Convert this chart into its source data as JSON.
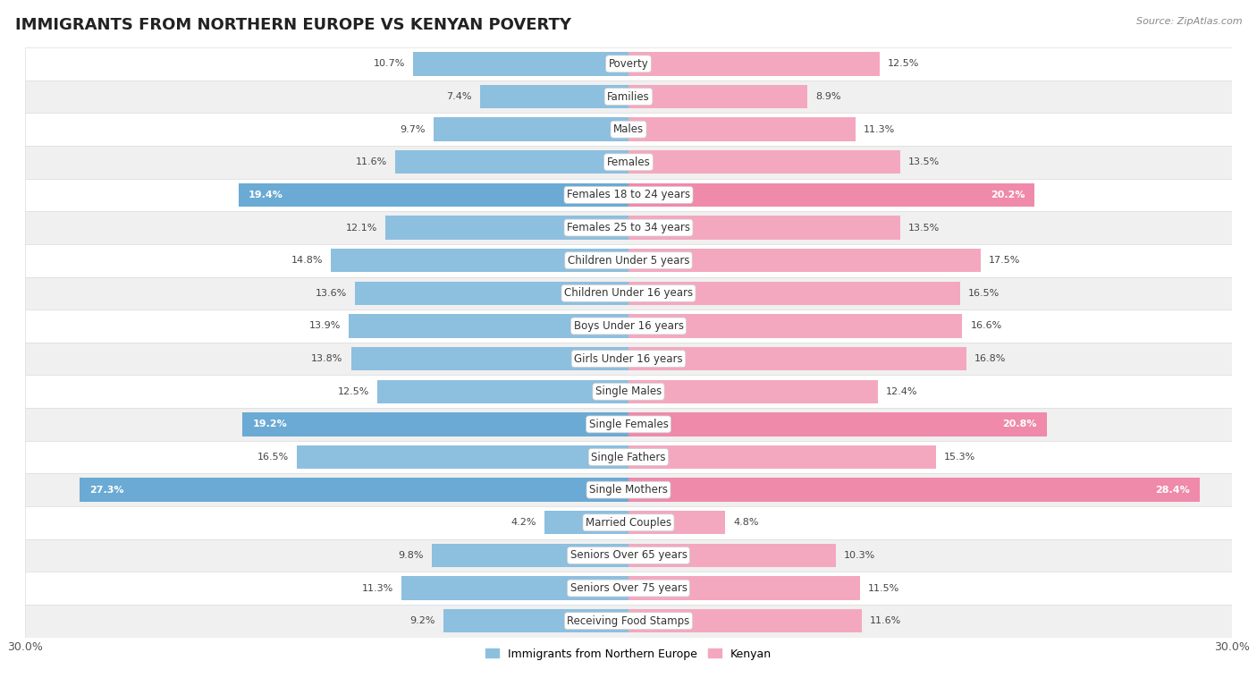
{
  "title": "IMMIGRANTS FROM NORTHERN EUROPE VS KENYAN POVERTY",
  "source": "Source: ZipAtlas.com",
  "categories": [
    "Poverty",
    "Families",
    "Males",
    "Females",
    "Females 18 to 24 years",
    "Females 25 to 34 years",
    "Children Under 5 years",
    "Children Under 16 years",
    "Boys Under 16 years",
    "Girls Under 16 years",
    "Single Males",
    "Single Females",
    "Single Fathers",
    "Single Mothers",
    "Married Couples",
    "Seniors Over 65 years",
    "Seniors Over 75 years",
    "Receiving Food Stamps"
  ],
  "left_values": [
    10.7,
    7.4,
    9.7,
    11.6,
    19.4,
    12.1,
    14.8,
    13.6,
    13.9,
    13.8,
    12.5,
    19.2,
    16.5,
    27.3,
    4.2,
    9.8,
    11.3,
    9.2
  ],
  "right_values": [
    12.5,
    8.9,
    11.3,
    13.5,
    20.2,
    13.5,
    17.5,
    16.5,
    16.6,
    16.8,
    12.4,
    20.8,
    15.3,
    28.4,
    4.8,
    10.3,
    11.5,
    11.6
  ],
  "left_color": "#8dbfdf",
  "right_color": "#f4a8bf",
  "highlight_left_color": "#6aaad4",
  "highlight_right_color": "#ef8aab",
  "highlight_rows": [
    4,
    11,
    13
  ],
  "axis_max": 30.0,
  "left_label": "Immigrants from Northern Europe",
  "right_label": "Kenyan",
  "bg_color": "#ffffff",
  "row_even_color": "#ffffff",
  "row_odd_color": "#f0f0f0",
  "bar_height": 0.72,
  "title_fontsize": 13,
  "label_fontsize": 8.5,
  "value_fontsize": 8.0
}
